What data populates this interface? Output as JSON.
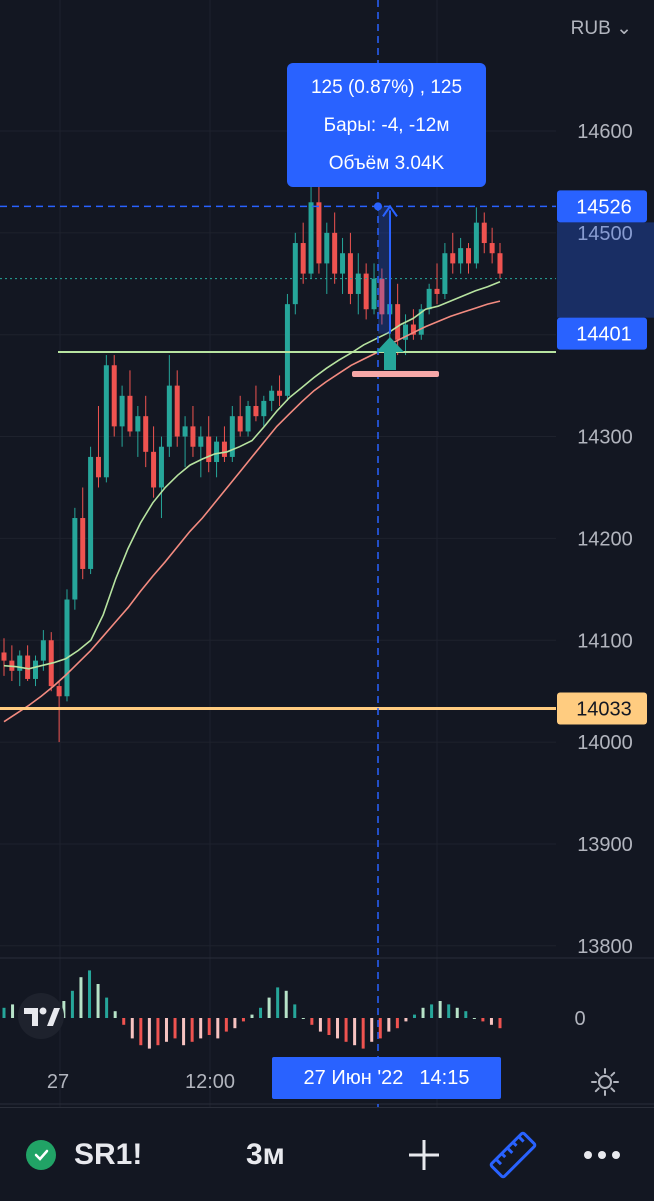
{
  "chart_data": {
    "type": "candlestick",
    "currency": "RUB",
    "y_ticks": [
      14600,
      14500,
      14300,
      14200,
      14100,
      14000,
      13900,
      13800
    ],
    "x_ticks": [
      "27",
      "12:00"
    ],
    "ylim": [
      13740,
      14760
    ],
    "price_badges": [
      {
        "value": "14526",
        "color": "#2962ff"
      },
      {
        "value": "14401",
        "color": "#2962ff"
      },
      {
        "value": "14033",
        "color": "#ffcc80"
      }
    ],
    "horizontal_lines": [
      {
        "value": 14383,
        "color": "#b7e3a0"
      },
      {
        "value": 14033,
        "color": "#ffcc80"
      }
    ],
    "measure_tooltip": {
      "line1": "125 (0.87%) , 125",
      "line2": "Бары: -4, -12м",
      "line3": "Объём 3.04K",
      "from_price": 14401,
      "to_price": 14526
    },
    "crosshair_label": {
      "date": "27 Июн '22",
      "time": "14:15"
    },
    "oscillator_zero_label": "0",
    "candles": [
      [
        14088,
        14102,
        14065,
        14080
      ],
      [
        14080,
        14095,
        14060,
        14070
      ],
      [
        14070,
        14090,
        14055,
        14085
      ],
      [
        14085,
        14095,
        14060,
        14062
      ],
      [
        14062,
        14085,
        14055,
        14080
      ],
      [
        14080,
        14110,
        14070,
        14100
      ],
      [
        14100,
        14108,
        14050,
        14055
      ],
      [
        14055,
        14060,
        14000,
        14045
      ],
      [
        14045,
        14150,
        14040,
        14140
      ],
      [
        14140,
        14230,
        14130,
        14220
      ],
      [
        14220,
        14250,
        14160,
        14170
      ],
      [
        14170,
        14290,
        14165,
        14280
      ],
      [
        14280,
        14330,
        14250,
        14260
      ],
      [
        14260,
        14380,
        14255,
        14370
      ],
      [
        14370,
        14380,
        14300,
        14310
      ],
      [
        14310,
        14350,
        14290,
        14340
      ],
      [
        14340,
        14365,
        14300,
        14305
      ],
      [
        14305,
        14330,
        14280,
        14320
      ],
      [
        14320,
        14340,
        14270,
        14285
      ],
      [
        14285,
        14310,
        14240,
        14250
      ],
      [
        14250,
        14300,
        14220,
        14290
      ],
      [
        14290,
        14380,
        14280,
        14350
      ],
      [
        14350,
        14365,
        14290,
        14300
      ],
      [
        14300,
        14320,
        14270,
        14310
      ],
      [
        14310,
        14330,
        14280,
        14290
      ],
      [
        14290,
        14310,
        14260,
        14300
      ],
      [
        14300,
        14320,
        14265,
        14275
      ],
      [
        14275,
        14300,
        14260,
        14295
      ],
      [
        14295,
        14310,
        14275,
        14280
      ],
      [
        14280,
        14330,
        14275,
        14320
      ],
      [
        14320,
        14340,
        14300,
        14305
      ],
      [
        14305,
        14335,
        14300,
        14330
      ],
      [
        14330,
        14350,
        14315,
        14320
      ],
      [
        14320,
        14340,
        14310,
        14335
      ],
      [
        14335,
        14350,
        14325,
        14345
      ],
      [
        14345,
        14360,
        14330,
        14340
      ],
      [
        14340,
        14440,
        14335,
        14430
      ],
      [
        14430,
        14500,
        14420,
        14490
      ],
      [
        14490,
        14510,
        14450,
        14460
      ],
      [
        14460,
        14545,
        14455,
        14530
      ],
      [
        14530,
        14560,
        14460,
        14470
      ],
      [
        14470,
        14510,
        14440,
        14500
      ],
      [
        14500,
        14520,
        14450,
        14460
      ],
      [
        14460,
        14495,
        14440,
        14480
      ],
      [
        14480,
        14500,
        14430,
        14440
      ],
      [
        14440,
        14480,
        14420,
        14460
      ],
      [
        14460,
        14470,
        14415,
        14425
      ],
      [
        14425,
        14470,
        14420,
        14455
      ],
      [
        14455,
        14465,
        14410,
        14420
      ],
      [
        14420,
        14440,
        14390,
        14430
      ],
      [
        14430,
        14450,
        14380,
        14395
      ],
      [
        14395,
        14420,
        14380,
        14410
      ],
      [
        14410,
        14425,
        14395,
        14400
      ],
      [
        14400,
        14430,
        14395,
        14425
      ],
      [
        14425,
        14450,
        14420,
        14445
      ],
      [
        14445,
        14470,
        14430,
        14440
      ],
      [
        14440,
        14490,
        14435,
        14480
      ],
      [
        14480,
        14500,
        14460,
        14470
      ],
      [
        14470,
        14495,
        14460,
        14485
      ],
      [
        14485,
        14490,
        14460,
        14470
      ],
      [
        14470,
        14525,
        14465,
        14510
      ],
      [
        14510,
        14520,
        14480,
        14490
      ],
      [
        14490,
        14505,
        14470,
        14480
      ],
      [
        14480,
        14490,
        14455,
        14460
      ]
    ],
    "ma_fast": [
      14075,
      14074,
      14072,
      14075,
      14078,
      14082,
      14090,
      14100,
      14125,
      14160,
      14190,
      14215,
      14235,
      14250,
      14262,
      14272,
      14278,
      14283,
      14285,
      14290,
      14296,
      14310,
      14325,
      14338,
      14348,
      14358,
      14367,
      14375,
      14382,
      14390,
      14396,
      14402,
      14410,
      14416,
      14425,
      14428,
      14433,
      14438,
      14443,
      14447,
      14452
    ],
    "ma_slow": [
      14020,
      14028,
      14036,
      14045,
      14055,
      14066,
      14078,
      14090,
      14104,
      14118,
      14132,
      14148,
      14163,
      14177,
      14192,
      14207,
      14220,
      14235,
      14250,
      14265,
      14280,
      14295,
      14310,
      14322,
      14334,
      14345,
      14354,
      14362,
      14370,
      14376,
      14382,
      14390,
      14396,
      14402,
      14408,
      14413,
      14418,
      14422,
      14426,
      14430,
      14433
    ],
    "oscillator": [
      3,
      4,
      3,
      2,
      1,
      2,
      3,
      5,
      8,
      12,
      14,
      10,
      6,
      2,
      -2,
      -6,
      -8,
      -9,
      -8,
      -7,
      -6,
      -8,
      -7,
      -6,
      -5,
      -6,
      -4,
      -3,
      -1,
      1,
      3,
      6,
      9,
      8,
      4,
      0,
      -2,
      -4,
      -5,
      -6,
      -7,
      -8,
      -9,
      -7,
      -6,
      -4,
      -3,
      -1,
      1,
      3,
      4,
      5,
      4,
      3,
      2,
      0,
      -1,
      -2,
      -3
    ]
  },
  "ui": {
    "currency_label": "RUB",
    "symbol": "SR1!",
    "interval": "3м"
  },
  "colors": {
    "background": "#131722",
    "up": "#26a69a",
    "down": "#ef5350",
    "ma_fast": "#b7e3a0",
    "ma_slow": "#f38b80",
    "accent": "#2962ff",
    "level": "#ffcc80"
  }
}
